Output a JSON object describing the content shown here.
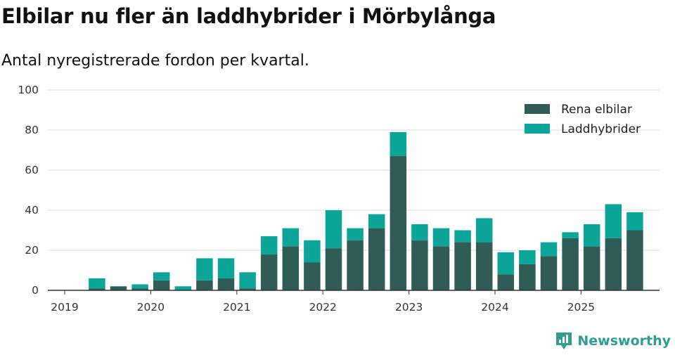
{
  "colors": {
    "pure_ev": "#2f5d55",
    "hybrid": "#0ba59a",
    "grid": "#dddddd",
    "axis": "#333333",
    "brand": "#2e9e8d"
  },
  "brand": {
    "name": "Newsworthy",
    "icon": "bar-chart-logo-icon"
  },
  "chart_data": {
    "type": "bar",
    "stacked": true,
    "title": "Elbilar nu fler än laddhybrider i Mörbylånga",
    "subtitle": "Antal nyregistrerade fordon per kvartal.",
    "xlabel": "",
    "ylabel": "",
    "ylim": [
      0,
      100
    ],
    "yticks": [
      0,
      20,
      40,
      60,
      80,
      100
    ],
    "year_labels": [
      "2019",
      "2020",
      "2021",
      "2022",
      "2023",
      "2024",
      "2025"
    ],
    "legend_position": "top-right",
    "categories": [
      "2019 Q2",
      "2019 Q3",
      "2019 Q4",
      "2020 Q1",
      "2020 Q2",
      "2020 Q3",
      "2020 Q4",
      "2021 Q1",
      "2021 Q2",
      "2021 Q3",
      "2021 Q4",
      "2022 Q1",
      "2022 Q2",
      "2022 Q3",
      "2022 Q4",
      "2023 Q1",
      "2023 Q2",
      "2023 Q3",
      "2023 Q4",
      "2024 Q1",
      "2024 Q2",
      "2024 Q3",
      "2024 Q4",
      "2025 Q1",
      "2025 Q2",
      "2025 Q3"
    ],
    "series": [
      {
        "name": "Rena elbilar",
        "values": [
          1,
          2,
          1,
          5,
          0,
          5,
          6,
          1,
          18,
          22,
          14,
          21,
          25,
          31,
          67,
          25,
          22,
          24,
          24,
          8,
          13,
          17,
          26,
          22,
          26,
          30
        ]
      },
      {
        "name": "Laddhybrider",
        "values": [
          5,
          0,
          2,
          4,
          2,
          11,
          10,
          8,
          9,
          9,
          11,
          19,
          6,
          7,
          12,
          8,
          9,
          6,
          12,
          11,
          7,
          7,
          3,
          11,
          17,
          9
        ]
      }
    ]
  }
}
